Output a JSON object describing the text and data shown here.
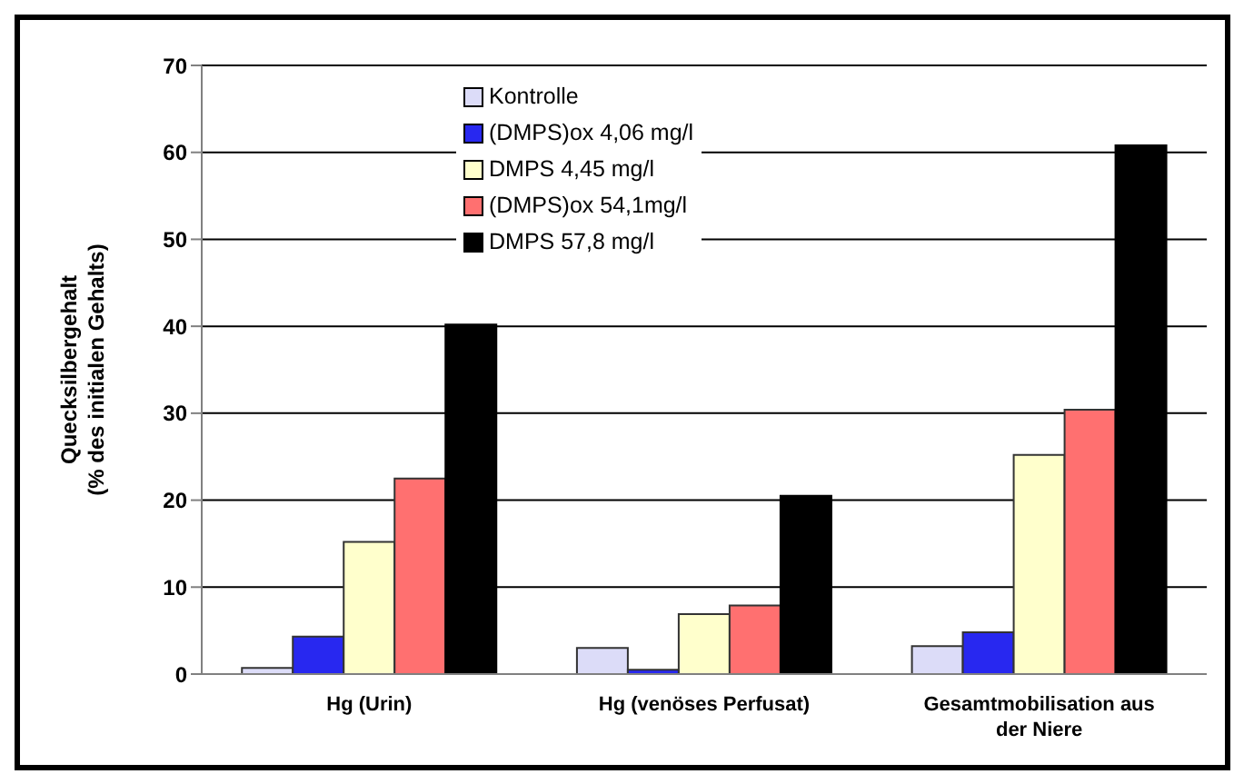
{
  "chart_data": {
    "type": "bar",
    "ylabel": "Quecksilbergehalt\n(% des initialen Gehalts)",
    "categories": [
      "Hg (Urin)",
      "Hg (venöses Perfusat)",
      "Gesamtmobilisation aus der Niere"
    ],
    "series": [
      {
        "name": "Kontrolle",
        "color": "#dcdcf8",
        "values": [
          0.7,
          3.0,
          3.2
        ]
      },
      {
        "name": "(DMPS)ox 4,06 mg/l",
        "color": "#2828f0",
        "values": [
          4.3,
          0.5,
          4.8
        ]
      },
      {
        "name": "DMPS 4,45 mg/l",
        "color": "#ffffcc",
        "values": [
          15.2,
          6.9,
          25.2
        ]
      },
      {
        "name": "(DMPS)ox 54,1mg/l",
        "color": "#ff7070",
        "values": [
          22.5,
          7.9,
          30.4
        ]
      },
      {
        "name": "DMPS 57,8 mg/l",
        "color": "#000000",
        "values": [
          40.2,
          20.5,
          60.8
        ]
      }
    ],
    "ylim": [
      0,
      70
    ],
    "yticks": [
      0,
      10,
      20,
      30,
      40,
      50,
      60,
      70
    ],
    "grid": "y",
    "legend": "top"
  }
}
